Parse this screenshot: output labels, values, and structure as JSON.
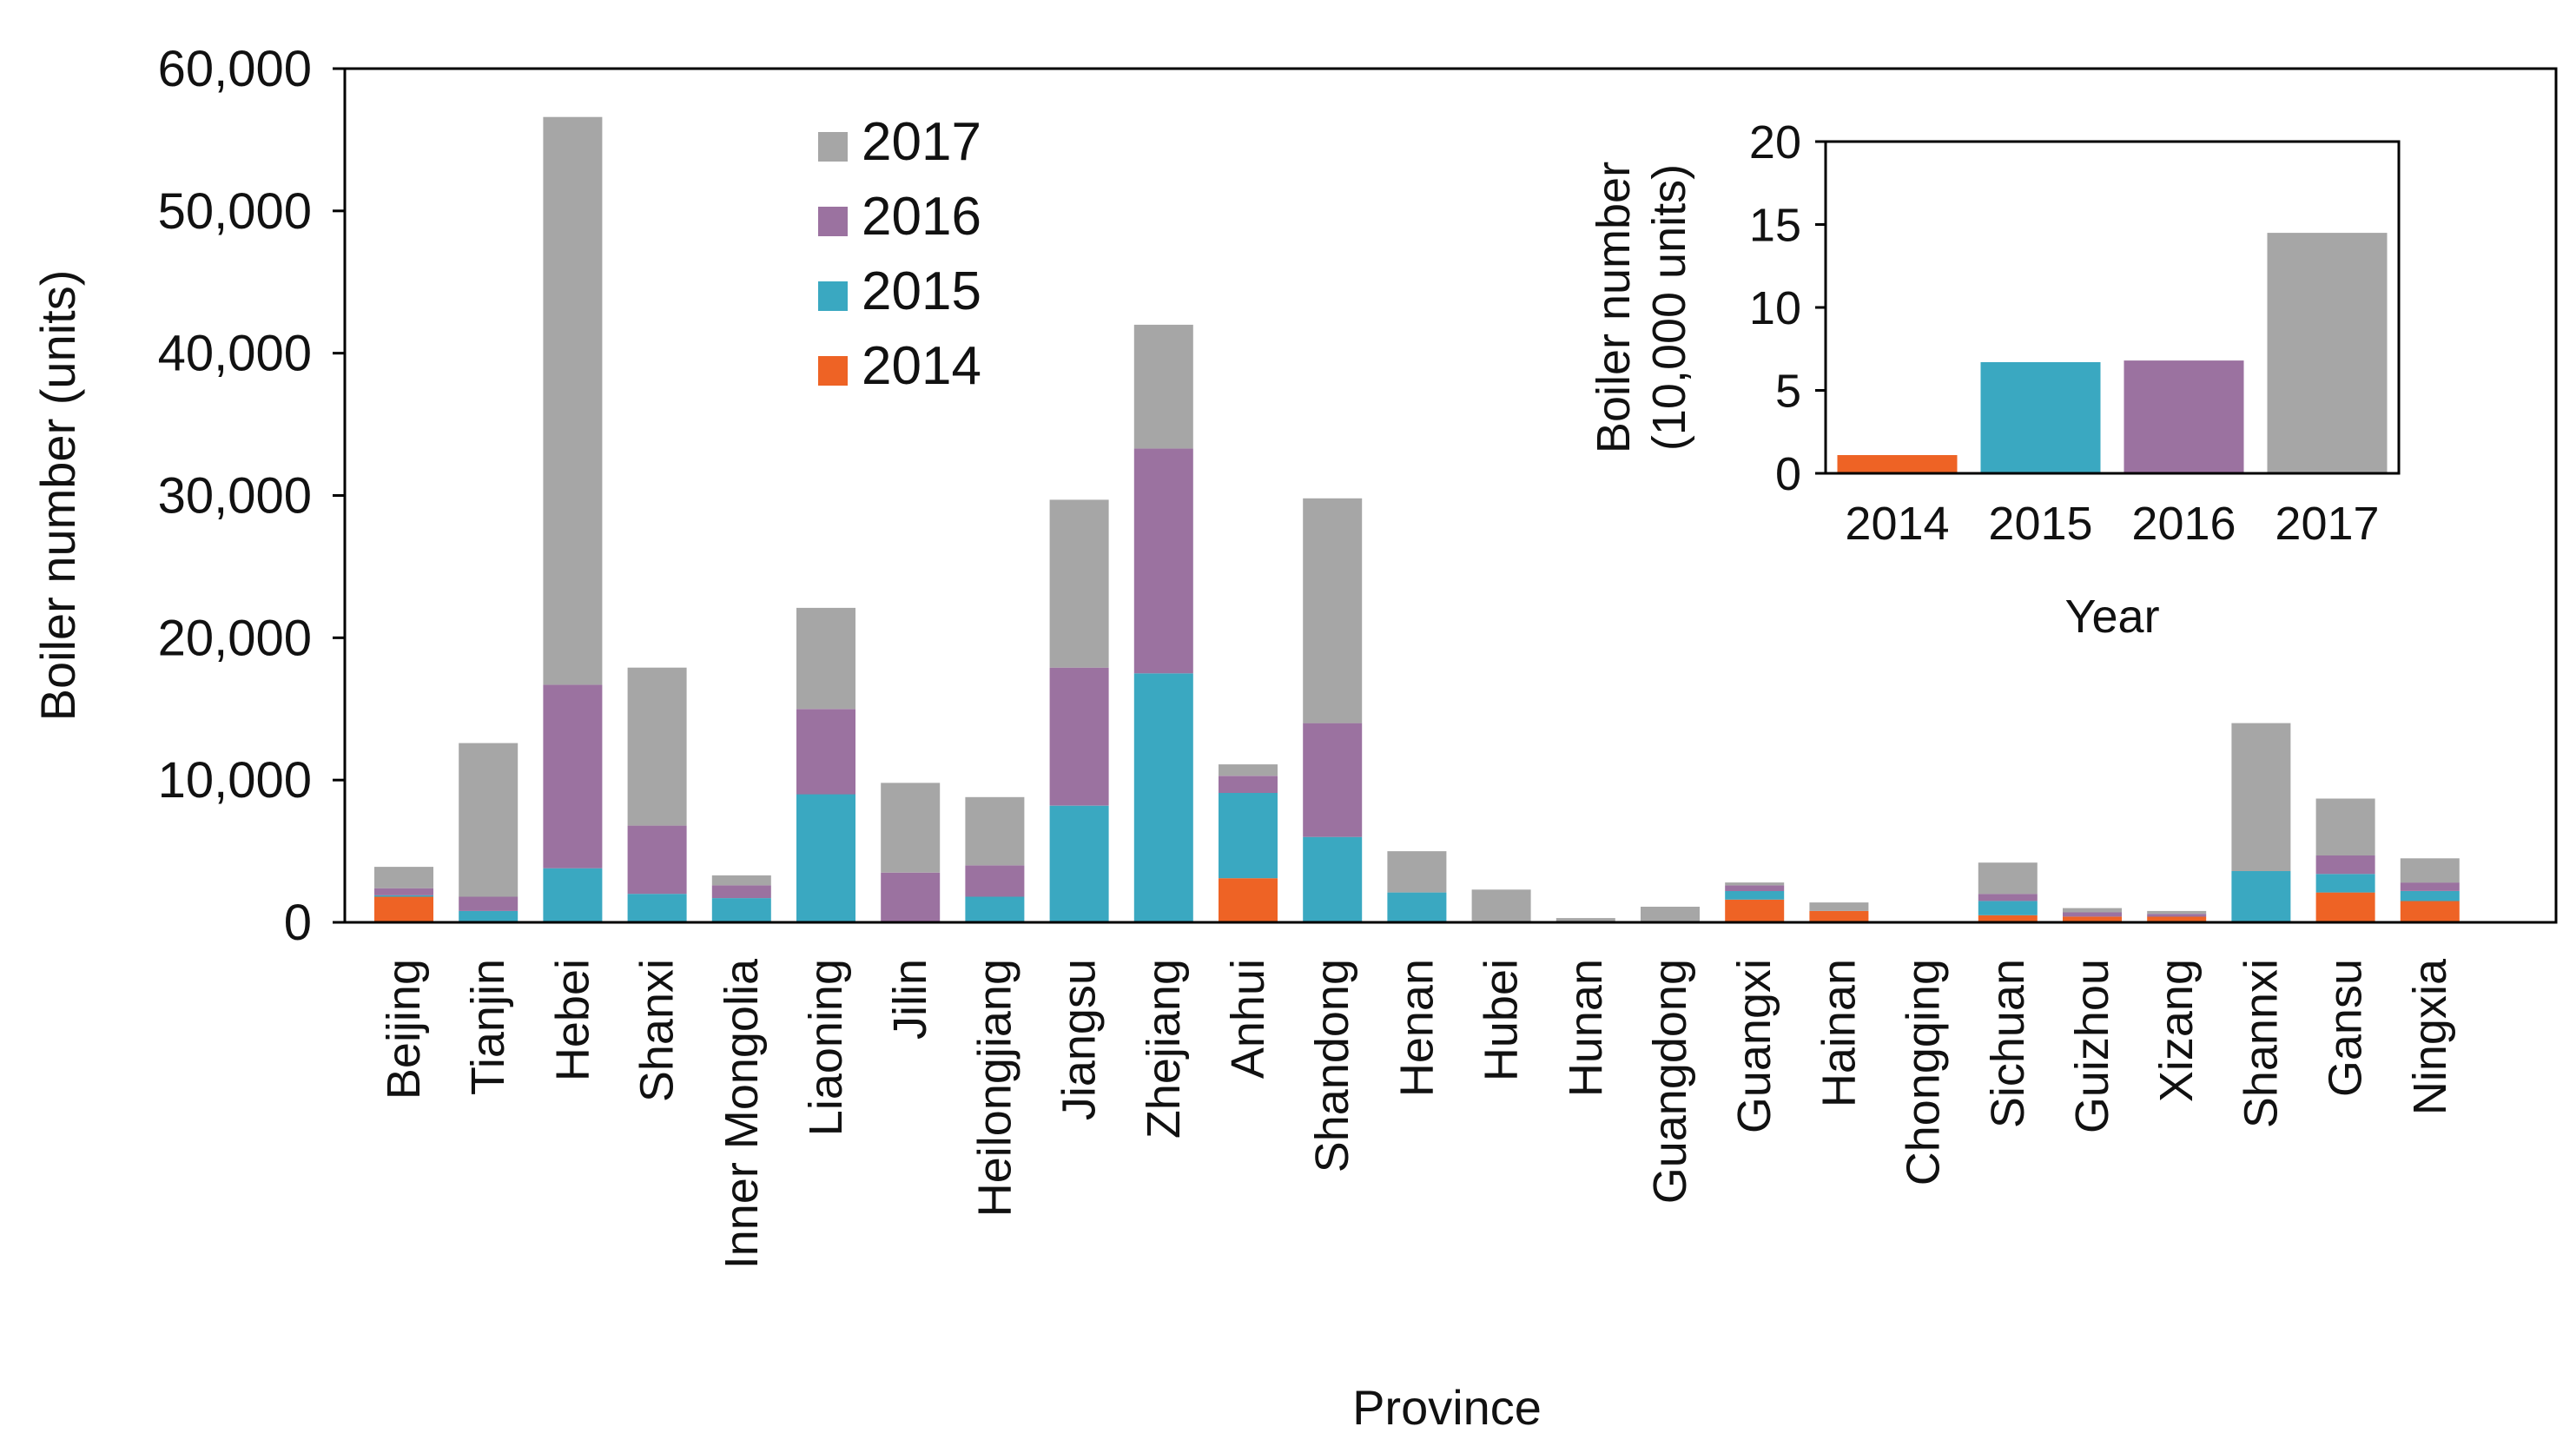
{
  "chart_data": [
    {
      "type": "bar",
      "stacked": true,
      "xlabel": "Province",
      "ylabel": "Boiler number (units)",
      "ylim": [
        0,
        60000
      ],
      "yticks": [
        "0",
        "10,000",
        "20,000",
        "30,000",
        "40,000",
        "50,000",
        "60,000"
      ],
      "ytick_values": [
        0,
        10000,
        20000,
        30000,
        40000,
        50000,
        60000
      ],
      "grid": false,
      "legend_position": "top-center",
      "categories": [
        "Beijing",
        "Tianjin",
        "Hebei",
        "Shanxi",
        "Inner Mongolia",
        "Liaoning",
        "Jilin",
        "Heilongjiang",
        "Jiangsu",
        "Zhejiang",
        "Anhui",
        "Shandong",
        "Henan",
        "Hubei",
        "Hunan",
        "Guangdong",
        "Guangxi",
        "Hainan",
        "Chongqing",
        "Sichuan",
        "Guizhou",
        "Xizang",
        "Shannxi",
        "Gansu",
        "Ningxia"
      ],
      "series": [
        {
          "name": "2014",
          "color": "#ee6325",
          "values": [
            1800,
            0,
            0,
            0,
            0,
            0,
            0,
            0,
            0,
            0,
            3100,
            0,
            0,
            0,
            0,
            0,
            1600,
            800,
            0,
            500,
            400,
            400,
            0,
            2100,
            1500
          ]
        },
        {
          "name": "2015",
          "color": "#3aa8c1",
          "values": [
            100,
            800,
            3800,
            2000,
            1700,
            9000,
            0,
            1800,
            8200,
            17500,
            6000,
            6000,
            2100,
            0,
            0,
            0,
            600,
            0,
            0,
            1000,
            0,
            0,
            3600,
            1300,
            700
          ]
        },
        {
          "name": "2016",
          "color": "#9b72a0",
          "values": [
            500,
            1000,
            12900,
            4800,
            900,
            6000,
            3500,
            2200,
            9700,
            15800,
            1200,
            8000,
            0,
            0,
            0,
            0,
            400,
            0,
            0,
            500,
            300,
            200,
            0,
            1300,
            600
          ]
        },
        {
          "name": "2017",
          "color": "#a6a6a6",
          "values": [
            1500,
            10800,
            39900,
            11100,
            700,
            7100,
            6300,
            4800,
            11800,
            8700,
            800,
            15800,
            2900,
            2300,
            300,
            1100,
            200,
            600,
            0,
            2200,
            300,
            200,
            10400,
            4000,
            1700
          ]
        }
      ]
    },
    {
      "type": "bar",
      "xlabel": "Year",
      "ylabel": "Boiler number",
      "ylabel_unit": "(10,000 units)",
      "ylim": [
        0,
        20
      ],
      "yticks": [
        "0",
        "5",
        "10",
        "15",
        "20"
      ],
      "ytick_values": [
        0,
        5,
        10,
        15,
        20
      ],
      "grid": false,
      "categories": [
        "2014",
        "2015",
        "2016",
        "2017"
      ],
      "values": [
        1.1,
        6.7,
        6.8,
        14.5
      ],
      "colors": [
        "#ee6325",
        "#3aa8c1",
        "#9b72a0",
        "#a6a6a6"
      ]
    }
  ]
}
